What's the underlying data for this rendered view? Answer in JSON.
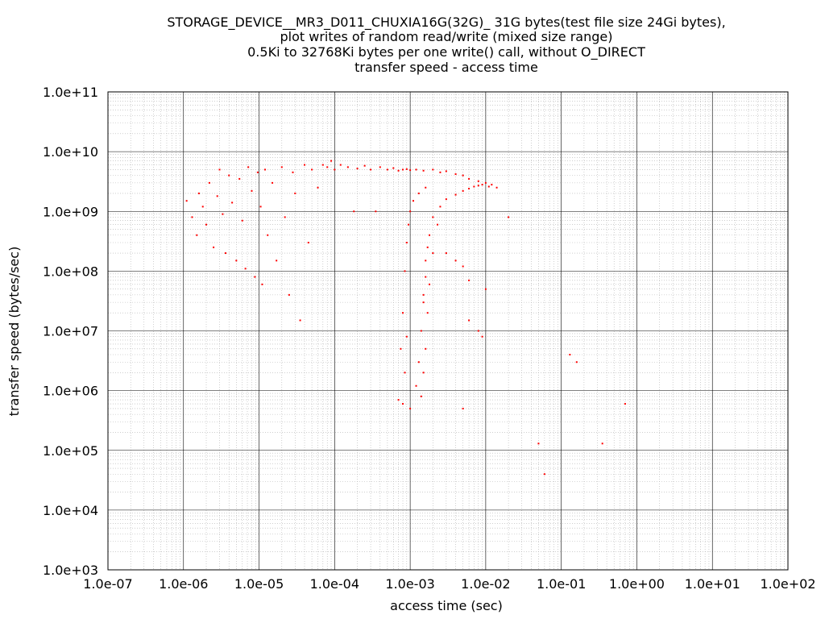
{
  "chart_data": {
    "type": "scatter",
    "title_lines": [
      "STORAGE_DEVICE__MR3_D011_CHUXIA16G(32G)_ 31G bytes(test file size 24Gi bytes),",
      "plot writes of random read/write (mixed size range)",
      "0.5Ki to 32768Ki bytes per one write() call, without O_DIRECT",
      "transfer speed - access time"
    ],
    "xlabel": "access time (sec)",
    "ylabel": "transfer speed (bytes/sec)",
    "x_scale": "log",
    "y_scale": "log",
    "xlim": [
      1e-07,
      100
    ],
    "ylim": [
      1000,
      100000000000
    ],
    "x_ticks": [
      1e-07,
      1e-06,
      1e-05,
      0.0001,
      0.001,
      0.01,
      0.1,
      1,
      10,
      100
    ],
    "x_tick_labels": [
      "1.0e-07",
      "1.0e-06",
      "1.0e-05",
      "1.0e-04",
      "1.0e-03",
      "1.0e-02",
      "1.0e-01",
      "1.0e+00",
      "1.0e+01",
      "1.0e+02"
    ],
    "y_ticks": [
      1000,
      10000,
      100000,
      1000000,
      10000000,
      100000000,
      1000000000,
      10000000000,
      100000000000
    ],
    "y_tick_labels": [
      "1.0e+03",
      "1.0e+04",
      "1.0e+05",
      "1.0e+06",
      "1.0e+07",
      "1.0e+08",
      "1.0e+09",
      "1.0e+10",
      "1.0e+11"
    ],
    "grid": true,
    "marker_color": "#ff0000",
    "series": [
      {
        "points": [
          [
            1.1e-06,
            1500000000.0
          ],
          [
            1.3e-06,
            800000000.0
          ],
          [
            1.5e-06,
            400000000.0
          ],
          [
            1.6e-06,
            2000000000.0
          ],
          [
            1.8e-06,
            1200000000.0
          ],
          [
            2e-06,
            600000000.0
          ],
          [
            2.2e-06,
            3000000000.0
          ],
          [
            2.5e-06,
            250000000.0
          ],
          [
            2.8e-06,
            1800000000.0
          ],
          [
            3e-06,
            5000000000.0
          ],
          [
            3.3e-06,
            900000000.0
          ],
          [
            3.6e-06,
            200000000.0
          ],
          [
            4e-06,
            4000000000.0
          ],
          [
            4.4e-06,
            1400000000.0
          ],
          [
            5e-06,
            150000000.0
          ],
          [
            5.5e-06,
            3500000000.0
          ],
          [
            6e-06,
            700000000.0
          ],
          [
            6.6e-06,
            110000000.0
          ],
          [
            7.2e-06,
            5500000000.0
          ],
          [
            8e-06,
            2200000000.0
          ],
          [
            8.8e-06,
            80000000.0
          ],
          [
            9.6e-06,
            4500000000.0
          ],
          [
            1.05e-05,
            1200000000.0
          ],
          [
            1.1e-05,
            60000000.0
          ],
          [
            1.2e-05,
            5000000000.0
          ],
          [
            1.3e-05,
            400000000.0
          ],
          [
            1.5e-05,
            3000000000.0
          ],
          [
            1.7e-05,
            150000000.0
          ],
          [
            2e-05,
            5500000000.0
          ],
          [
            2.2e-05,
            800000000.0
          ],
          [
            2.5e-05,
            40000000.0
          ],
          [
            2.8e-05,
            4500000000.0
          ],
          [
            3e-05,
            2000000000.0
          ],
          [
            3.5e-05,
            15000000.0
          ],
          [
            4e-05,
            6000000000.0
          ],
          [
            4.5e-05,
            300000000.0
          ],
          [
            5e-05,
            5000000000.0
          ],
          [
            6e-05,
            2500000000.0
          ],
          [
            7e-05,
            6000000000.0
          ],
          [
            8e-05,
            5500000000.0
          ],
          [
            9e-05,
            7000000000.0
          ],
          [
            0.0001,
            5000000000.0
          ],
          [
            0.00012,
            6000000000.0
          ],
          [
            0.00015,
            5500000000.0
          ],
          [
            0.00018,
            1000000000.0
          ],
          [
            0.0002,
            5200000000.0
          ],
          [
            0.00025,
            5800000000.0
          ],
          [
            0.0003,
            5000000000.0
          ],
          [
            0.00035,
            1000000000.0
          ],
          [
            0.0004,
            5500000000.0
          ],
          [
            0.0005,
            5000000000.0
          ],
          [
            0.0006,
            5300000000.0
          ],
          [
            0.0007,
            4800000000.0
          ],
          [
            0.0008,
            5000000000.0
          ],
          [
            0.0009,
            5100000000.0
          ],
          [
            0.001,
            4900000000.0
          ],
          [
            0.0012,
            5000000000.0
          ],
          [
            0.0015,
            4800000000.0
          ],
          [
            0.002,
            5000000000.0
          ],
          [
            0.0025,
            4500000000.0
          ],
          [
            0.003,
            4700000000.0
          ],
          [
            0.004,
            4200000000.0
          ],
          [
            0.005,
            4000000000.0
          ],
          [
            0.006,
            3500000000.0
          ],
          [
            0.008,
            3200000000.0
          ],
          [
            0.01,
            3000000000.0
          ],
          [
            0.012,
            2800000000.0
          ],
          [
            0.014,
            2500000000.0
          ],
          [
            0.0007,
            700000.0
          ],
          [
            0.00075,
            5000000.0
          ],
          [
            0.0008,
            20000000.0
          ],
          [
            0.00085,
            100000000.0
          ],
          [
            0.0009,
            300000000.0
          ],
          [
            0.00095,
            600000000.0
          ],
          [
            0.001,
            1000000000.0
          ],
          [
            0.0011,
            1500000000.0
          ],
          [
            0.0013,
            2000000000.0
          ],
          [
            0.0016,
            2500000000.0
          ],
          [
            0.0008,
            600000.0
          ],
          [
            0.00085,
            2000000.0
          ],
          [
            0.0009,
            8000000.0
          ],
          [
            0.001,
            500000.0
          ],
          [
            0.0012,
            1200000.0
          ],
          [
            0.0013,
            3000000.0
          ],
          [
            0.0014,
            10000000.0
          ],
          [
            0.0015,
            40000000.0
          ],
          [
            0.0016,
            150000000.0
          ],
          [
            0.0018,
            400000000.0
          ],
          [
            0.002,
            800000000.0
          ],
          [
            0.0025,
            1200000000.0
          ],
          [
            0.003,
            1600000000.0
          ],
          [
            0.004,
            1900000000.0
          ],
          [
            0.005,
            2200000000.0
          ],
          [
            0.006,
            2400000000.0
          ],
          [
            0.007,
            2600000000.0
          ],
          [
            0.008,
            2700000000.0
          ],
          [
            0.009,
            2800000000.0
          ],
          [
            0.011,
            2600000000.0
          ],
          [
            0.0014,
            800000.0
          ],
          [
            0.0015,
            2000000.0
          ],
          [
            0.0016,
            5000000.0
          ],
          [
            0.0017,
            20000000.0
          ],
          [
            0.0018,
            60000000.0
          ],
          [
            0.002,
            200000000.0
          ],
          [
            0.0023,
            600000000.0
          ],
          [
            0.0015,
            30000000.0
          ],
          [
            0.0016,
            80000000.0
          ],
          [
            0.0017,
            250000000.0
          ],
          [
            0.003,
            200000000.0
          ],
          [
            0.004,
            150000000.0
          ],
          [
            0.005,
            120000000.0
          ],
          [
            0.006,
            70000000.0
          ],
          [
            0.006,
            15000000.0
          ],
          [
            0.005,
            500000.0
          ],
          [
            0.008,
            10000000.0
          ],
          [
            0.009,
            8000000.0
          ],
          [
            0.01,
            50000000.0
          ],
          [
            0.05,
            130000.0
          ],
          [
            0.06,
            40000.0
          ],
          [
            0.13,
            4000000.0
          ],
          [
            0.16,
            3000000.0
          ],
          [
            0.35,
            130000.0
          ],
          [
            0.7,
            600000.0
          ],
          [
            0.02,
            800000000.0
          ]
        ]
      }
    ]
  }
}
